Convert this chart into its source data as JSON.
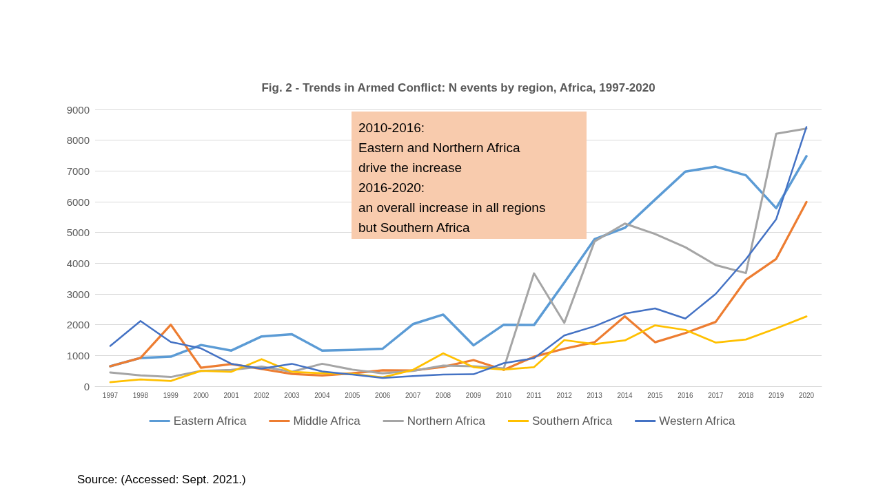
{
  "chart_data": {
    "type": "line",
    "title": "Fig. 2 - Trends in Armed Conflict: N events by region, Africa, 1997-2020",
    "categories": [
      "1997",
      "1998",
      "1999",
      "2000",
      "2001",
      "2002",
      "2003",
      "2004",
      "2005",
      "2006",
      "2007",
      "2008",
      "2009",
      "2010",
      "2011",
      "2012",
      "2013",
      "2014",
      "2015",
      "2016",
      "2017",
      "2018",
      "2019",
      "2020"
    ],
    "series": [
      {
        "name": "Eastern Africa",
        "color": "#5b9bd5",
        "values": [
          650,
          920,
          960,
          1340,
          1160,
          1620,
          1690,
          1160,
          1180,
          1220,
          2020,
          2330,
          1330,
          2000,
          1990,
          3370,
          4780,
          5150,
          6070,
          6980,
          7140,
          6860,
          5790,
          7480
        ]
      },
      {
        "name": "Middle Africa",
        "color": "#ed7d31",
        "values": [
          650,
          920,
          2000,
          600,
          720,
          560,
          400,
          350,
          420,
          520,
          510,
          630,
          850,
          530,
          960,
          1220,
          1430,
          2270,
          1430,
          1730,
          2090,
          3460,
          4140,
          5990
        ]
      },
      {
        "name": "Northern Africa",
        "color": "#a5a5a5",
        "values": [
          450,
          350,
          300,
          500,
          530,
          640,
          470,
          730,
          540,
          420,
          500,
          670,
          650,
          580,
          3670,
          2060,
          4710,
          5290,
          4950,
          4520,
          3940,
          3680,
          8210,
          8380
        ]
      },
      {
        "name": "Southern Africa",
        "color": "#ffc000",
        "values": [
          130,
          220,
          170,
          500,
          470,
          880,
          470,
          420,
          400,
          290,
          530,
          1070,
          620,
          540,
          620,
          1500,
          1370,
          1490,
          1980,
          1830,
          1420,
          1520,
          1880,
          2270
        ]
      },
      {
        "name": "Western Africa",
        "color": "#4472c4",
        "values": [
          1310,
          2120,
          1440,
          1230,
          730,
          570,
          730,
          480,
          380,
          270,
          330,
          380,
          390,
          750,
          910,
          1650,
          1950,
          2360,
          2530,
          2200,
          3000,
          4130,
          5430,
          8430
        ]
      }
    ],
    "ylim": [
      0,
      9000
    ],
    "yticks": [
      0,
      1000,
      2000,
      3000,
      4000,
      5000,
      6000,
      7000,
      8000,
      9000
    ],
    "grid": "y",
    "legend": "bottom",
    "marker": "none",
    "line_style": "solid",
    "annotations": [
      "2010-2016:\nEastern and Northern Africa\ndrive the increase\n2016-2020:\nan overall increase in all regions\nbut Southern Africa",
      "Source: (Accessed: Sept. 2021.)"
    ]
  }
}
